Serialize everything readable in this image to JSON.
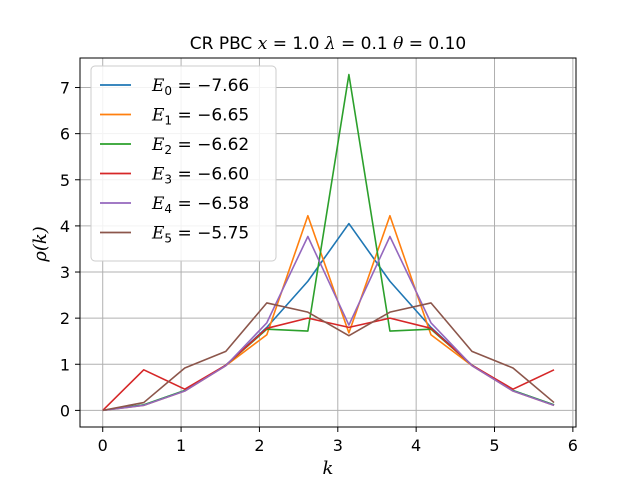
{
  "chart_data": {
    "type": "line",
    "title": "CR PBC x= 1.0 λ = 0.1 θ= 0.10",
    "xlabel": "k",
    "ylabel": "ρ(k)",
    "xlim": [
      -0.29,
      6.04
    ],
    "ylim": [
      -0.36,
      7.64
    ],
    "xticks": [
      0,
      1,
      2,
      3,
      4,
      5,
      6
    ],
    "yticks": [
      0,
      1,
      2,
      3,
      4,
      5,
      6,
      7
    ],
    "grid": true,
    "legend_position": "top-left",
    "x": [
      0.0,
      0.5236,
      1.0472,
      1.5708,
      2.0944,
      2.618,
      3.1416,
      3.6652,
      4.1888,
      4.7124,
      5.236,
      5.7596
    ],
    "series": [
      {
        "name": "E0 = −7.66",
        "color": "#1f77b4",
        "values": [
          0.0,
          0.12,
          0.43,
          0.98,
          1.8,
          2.8,
          4.05,
          2.8,
          1.8,
          0.98,
          0.43,
          0.12
        ]
      },
      {
        "name": "E1 = −6.65",
        "color": "#ff7f0e",
        "values": [
          0.0,
          0.11,
          0.42,
          0.97,
          1.64,
          4.22,
          1.68,
          4.22,
          1.64,
          0.97,
          0.42,
          0.11
        ]
      },
      {
        "name": "E2 = −6.62",
        "color": "#2ca02c",
        "values": [
          0.0,
          0.12,
          0.43,
          0.98,
          1.76,
          1.72,
          7.28,
          1.72,
          1.76,
          0.98,
          0.43,
          0.12
        ]
      },
      {
        "name": "E3 = −6.60",
        "color": "#d62728",
        "values": [
          0.0,
          0.88,
          0.46,
          0.98,
          1.78,
          2.0,
          1.8,
          2.0,
          1.78,
          0.98,
          0.46,
          0.88
        ]
      },
      {
        "name": "E4 = −6.58",
        "color": "#9467bd",
        "values": [
          0.0,
          0.11,
          0.42,
          0.97,
          1.9,
          3.77,
          1.85,
          3.77,
          1.9,
          0.97,
          0.42,
          0.11
        ]
      },
      {
        "name": "E5 = −5.75",
        "color": "#8c564b",
        "values": [
          0.0,
          0.17,
          0.92,
          1.28,
          2.33,
          2.13,
          1.62,
          2.13,
          2.33,
          1.28,
          0.92,
          0.17
        ]
      }
    ],
    "legend": [
      {
        "base": "E",
        "sub": "0",
        "rest": " = −7.66"
      },
      {
        "base": "E",
        "sub": "1",
        "rest": " = −6.65"
      },
      {
        "base": "E",
        "sub": "2",
        "rest": " = −6.62"
      },
      {
        "base": "E",
        "sub": "3",
        "rest": " = −6.60"
      },
      {
        "base": "E",
        "sub": "4",
        "rest": " = −6.58"
      },
      {
        "base": "E",
        "sub": "5",
        "rest": " = −5.75"
      }
    ]
  }
}
